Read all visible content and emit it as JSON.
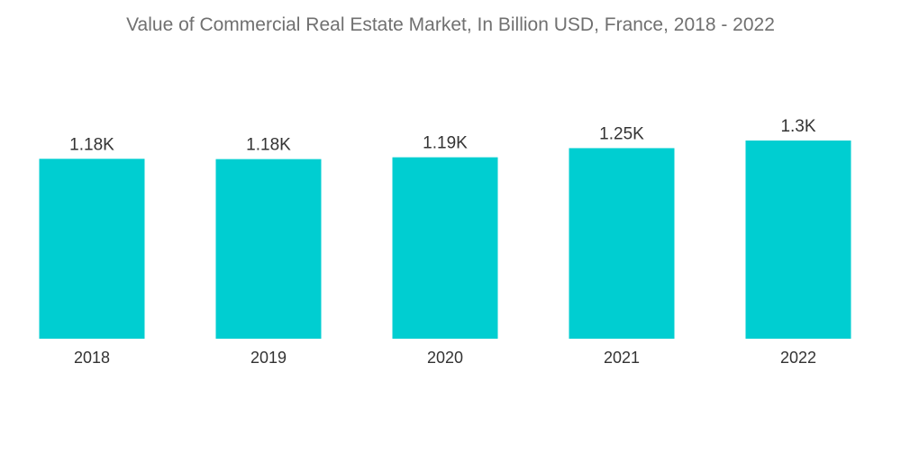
{
  "chart_data": {
    "type": "bar",
    "title": "Value of Commercial Real Estate Market, In Billion USD, France, 2018 - 2022",
    "categories": [
      "2018",
      "2019",
      "2020",
      "2021",
      "2022"
    ],
    "values": [
      1180,
      1178,
      1190,
      1250,
      1300
    ],
    "data_labels": [
      "1.18K",
      "1.18K",
      "1.19K",
      "1.25K",
      "1.3K"
    ],
    "xlabel": "",
    "ylabel": "",
    "ylim": [
      0,
      1300
    ],
    "grid": false,
    "legend": "none",
    "bar_color": "#00CED1"
  }
}
